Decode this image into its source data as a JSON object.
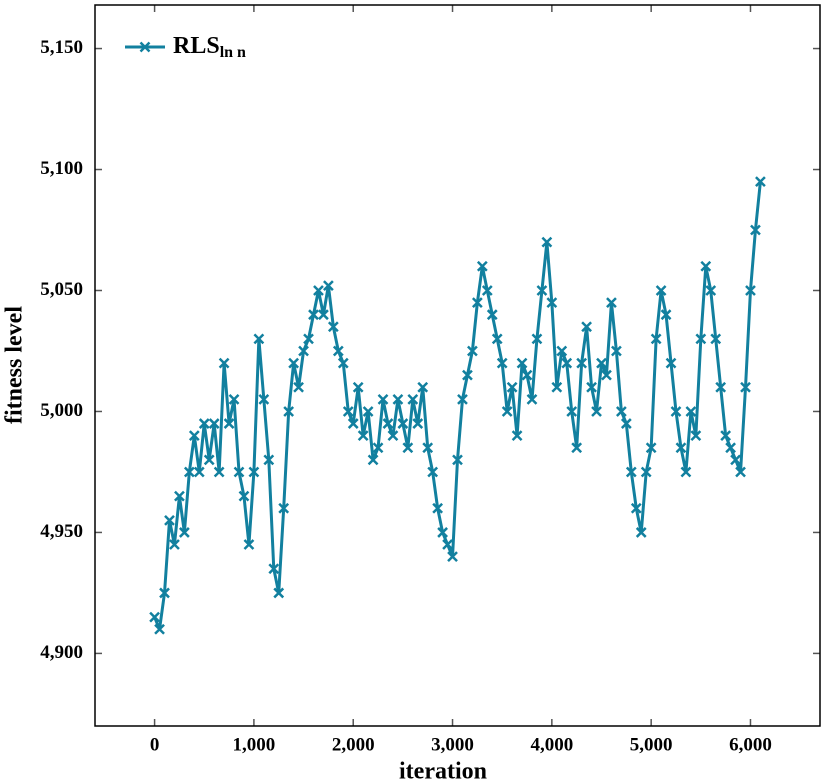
{
  "chart_data": {
    "type": "line",
    "x_label": "iteration",
    "y_label": "fitness level",
    "x": [
      0,
      50,
      100,
      150,
      200,
      250,
      300,
      350,
      400,
      450,
      500,
      550,
      600,
      650,
      700,
      750,
      800,
      850,
      900,
      950,
      1000,
      1050,
      1100,
      1150,
      1200,
      1250,
      1300,
      1350,
      1400,
      1450,
      1500,
      1550,
      1600,
      1650,
      1700,
      1750,
      1800,
      1850,
      1900,
      1950,
      2000,
      2050,
      2100,
      2150,
      2200,
      2250,
      2300,
      2350,
      2400,
      2450,
      2500,
      2550,
      2600,
      2650,
      2700,
      2750,
      2800,
      2850,
      2900,
      2950,
      3000,
      3050,
      3100,
      3150,
      3200,
      3250,
      3300,
      3350,
      3400,
      3450,
      3500,
      3550,
      3600,
      3650,
      3700,
      3750,
      3800,
      3850,
      3900,
      3950,
      4000,
      4050,
      4100,
      4150,
      4200,
      4250,
      4300,
      4350,
      4400,
      4450,
      4500,
      4550,
      4600,
      4650,
      4700,
      4750,
      4800,
      4850,
      4900,
      4950,
      5000,
      5050,
      5100,
      5150,
      5200,
      5250,
      5300,
      5350,
      5400,
      5450,
      5500,
      5550,
      5600,
      5650,
      5700,
      5750,
      5800,
      5850,
      5900,
      5950,
      6000,
      6050,
      6100
    ],
    "series": [
      {
        "name": "RLS",
        "name_subscript": "ln n",
        "color": "#12809f",
        "values": [
          4915,
          4910,
          4925,
          4955,
          4945,
          4965,
          4950,
          4975,
          4990,
          4975,
          4995,
          4980,
          4995,
          4975,
          5020,
          4995,
          5005,
          4975,
          4965,
          4945,
          4975,
          5030,
          5005,
          4980,
          4935,
          4925,
          4960,
          5000,
          5020,
          5010,
          5025,
          5030,
          5040,
          5050,
          5040,
          5052,
          5035,
          5025,
          5020,
          5000,
          4995,
          5010,
          4990,
          5000,
          4980,
          4985,
          5005,
          4995,
          4990,
          5005,
          4995,
          4985,
          5005,
          4995,
          5010,
          4985,
          4975,
          4960,
          4950,
          4945,
          4940,
          4980,
          5005,
          5015,
          5025,
          5045,
          5060,
          5050,
          5040,
          5030,
          5020,
          5000,
          5010,
          4990,
          5020,
          5015,
          5005,
          5030,
          5050,
          5070,
          5045,
          5010,
          5025,
          5020,
          5000,
          4985,
          5020,
          5035,
          5010,
          5000,
          5020,
          5015,
          5045,
          5025,
          5000,
          4995,
          4975,
          4960,
          4950,
          4975,
          4985,
          5030,
          5050,
          5040,
          5020,
          5000,
          4985,
          4975,
          5000,
          4990,
          5030,
          5060,
          5050,
          5030,
          5010,
          4990,
          4985,
          4980,
          4975,
          5010,
          5050,
          5075,
          5095
        ]
      }
    ],
    "xlim": [
      -600,
      6700
    ],
    "xticks": [
      0,
      {
        "value": 1000,
        "label": "1,000"
      },
      {
        "value": 2000,
        "label": "2,000"
      },
      {
        "value": 3000,
        "label": "3,000"
      },
      {
        "value": 4000,
        "label": "4,000"
      },
      {
        "value": 5000,
        "label": "5,000"
      },
      {
        "value": 6000,
        "label": "6,000"
      }
    ],
    "ylim": [
      4870,
      5168
    ],
    "yticks": [
      {
        "value": 4900,
        "label": "4,900"
      },
      {
        "value": 4950,
        "label": "4,950"
      },
      {
        "value": 5000,
        "label": "5,000"
      },
      {
        "value": 5050,
        "label": "5,050"
      },
      {
        "value": 5100,
        "label": "5,100"
      },
      {
        "value": 5150,
        "label": "5,150"
      }
    ],
    "legend": "upper left"
  }
}
